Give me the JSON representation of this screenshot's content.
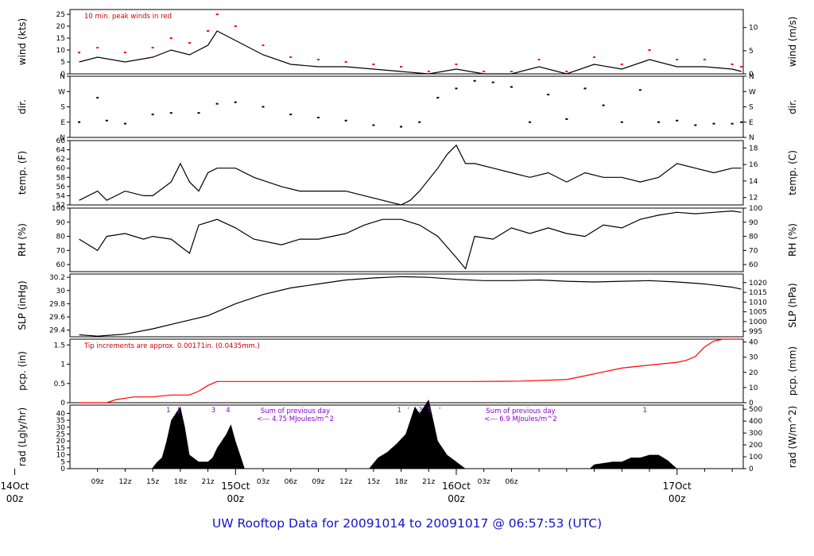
{
  "chart_data": {
    "type": "line",
    "title": "UW Rooftop Data for 20091014  to  20091017 @ 06:57:53  (UTC)",
    "x_ticks": [
      "09z",
      "12z",
      "15z",
      "18z",
      "21z",
      "03z",
      "06z",
      "09z",
      "12z",
      "15z",
      "18z",
      "21z",
      "03z",
      "06z"
    ],
    "day_labels": [
      {
        "date": "14Oct",
        "hour": "00z",
        "t": 0
      },
      {
        "date": "15Oct",
        "hour": "00z",
        "t": 24
      },
      {
        "date": "16Oct",
        "hour": "00z",
        "t": 48
      },
      {
        "date": "17Oct",
        "hour": "00z",
        "t": 72
      }
    ],
    "panels": [
      {
        "id": "wind",
        "ylabel": "wind (kts)",
        "ylabel_right": "wind (m/s)",
        "ylim": [
          0,
          27
        ],
        "yticks": [
          0,
          5,
          10,
          15,
          20,
          25
        ],
        "ylim_right": [
          0,
          13.9
        ],
        "yticks_right": [
          0,
          5,
          10
        ],
        "annotation": "10 min. peak winds in red",
        "series": [
          {
            "style": "line",
            "color": "#000000",
            "t": [
              7,
              9,
              12,
              15,
              17,
              19,
              21,
              22,
              24,
              27,
              30,
              33,
              36,
              39,
              42,
              45,
              48,
              51,
              54,
              57,
              60,
              63,
              66,
              69,
              72,
              75,
              78,
              79
            ],
            "y": [
              5,
              7,
              5,
              7,
              10,
              8,
              12,
              18,
              14,
              8,
              4,
              3,
              3,
              2,
              1,
              0,
              2,
              0,
              0,
              3,
              0,
              4,
              2,
              6,
              3,
              3,
              2,
              1
            ]
          },
          {
            "style": "dots",
            "color": "#ff0000",
            "t": [
              7,
              9,
              12,
              15,
              17,
              19,
              21,
              22,
              24,
              27,
              30,
              33,
              36,
              39,
              42,
              45,
              48,
              51,
              54,
              57,
              60,
              63,
              66,
              69,
              72,
              75,
              78,
              79
            ],
            "y": [
              9,
              11,
              9,
              11,
              15,
              13,
              18,
              25,
              20,
              12,
              7,
              6,
              5,
              4,
              3,
              1,
              4,
              1,
              1,
              6,
              1,
              7,
              4,
              10,
              6,
              6,
              4,
              3
            ]
          }
        ]
      },
      {
        "id": "dir",
        "ylabel": "dir.",
        "ylabel_right": "dir.",
        "ylim": [
          0,
          4
        ],
        "ytick_labels": [
          "N",
          "E",
          "S",
          "W",
          "N"
        ],
        "yticks": [
          0,
          1,
          2,
          3,
          4
        ],
        "series": [
          {
            "style": "dots",
            "color": "#000000",
            "t": [
              7,
              9,
              10,
              12,
              15,
              17,
              20,
              22,
              24,
              27,
              30,
              33,
              36,
              39,
              42,
              44,
              46,
              48,
              50,
              52,
              54,
              56,
              58,
              60,
              62,
              64,
              66,
              68,
              70,
              72,
              74,
              76,
              78,
              79
            ],
            "y": [
              1.0,
              2.6,
              1.1,
              0.9,
              1.5,
              1.6,
              1.6,
              2.2,
              2.3,
              2.0,
              1.5,
              1.3,
              1.1,
              0.8,
              0.7,
              1.0,
              2.6,
              3.2,
              3.7,
              3.6,
              3.3,
              1.0,
              2.8,
              1.2,
              3.2,
              2.1,
              1.0,
              3.1,
              1.0,
              1.1,
              0.8,
              0.9,
              0.9,
              1.0
            ]
          }
        ]
      },
      {
        "id": "temp",
        "ylabel": "temp. (F)",
        "ylabel_right": "temp. (C)",
        "ylim": [
          52,
          66
        ],
        "yticks": [
          52,
          54,
          56,
          58,
          60,
          62,
          64,
          66
        ],
        "ylim_right": [
          11.1,
          18.9
        ],
        "yticks_right": [
          12,
          14,
          16,
          18
        ],
        "series": [
          {
            "style": "line",
            "color": "#000000",
            "t": [
              7,
              9,
              10,
              12,
              14,
              15,
              17,
              18,
              19,
              20,
              21,
              22,
              24,
              26,
              29,
              31,
              33,
              36,
              38,
              40,
              42,
              43,
              44,
              46,
              47,
              48,
              49,
              50,
              52,
              54,
              56,
              58,
              60,
              62,
              64,
              66,
              68,
              70,
              72,
              74,
              76,
              78,
              79
            ],
            "y": [
              53,
              55,
              53,
              55,
              54,
              54,
              57,
              61,
              57,
              55,
              59,
              60,
              60,
              58,
              56,
              55,
              55,
              55,
              54,
              53,
              52,
              53,
              55,
              60,
              63,
              65,
              61,
              61,
              60,
              59,
              58,
              59,
              57,
              59,
              58,
              58,
              57,
              58,
              61,
              60,
              59,
              60,
              60
            ]
          }
        ]
      },
      {
        "id": "rh",
        "ylabel": "RH (%)",
        "ylabel_right": "RH (%)",
        "ylim": [
          55,
          100
        ],
        "yticks": [
          60,
          70,
          80,
          90,
          100
        ],
        "yticks_right": [
          60,
          70,
          80,
          90,
          100
        ],
        "series": [
          {
            "style": "line",
            "color": "#000000",
            "t": [
              7,
              9,
              10,
              12,
              14,
              15,
              17,
              19,
              20,
              22,
              24,
              26,
              29,
              31,
              33,
              36,
              38,
              40,
              42,
              44,
              46,
              48,
              49,
              50,
              52,
              54,
              56,
              58,
              60,
              62,
              64,
              66,
              68,
              70,
              72,
              74,
              76,
              78,
              79
            ],
            "y": [
              78,
              70,
              80,
              82,
              78,
              80,
              78,
              68,
              88,
              92,
              86,
              78,
              74,
              78,
              78,
              82,
              88,
              92,
              92,
              88,
              80,
              65,
              57,
              80,
              78,
              86,
              82,
              86,
              82,
              80,
              88,
              86,
              92,
              95,
              97,
              96,
              97,
              98,
              97
            ]
          }
        ]
      },
      {
        "id": "slp",
        "ylabel": "SLP (inHg)",
        "ylabel_right": "SLP (hPa)",
        "ylim": [
          29.3,
          30.25
        ],
        "yticks": [
          29.4,
          29.6,
          29.8,
          30.0,
          30.2
        ],
        "ylim_right": [
          992.2,
          1024.4
        ],
        "yticks_right": [
          995,
          1000,
          1005,
          1010,
          1015,
          1020
        ],
        "series": [
          {
            "style": "line",
            "color": "#000000",
            "t": [
              7,
              9,
              12,
              15,
              18,
              21,
              24,
              27,
              30,
              33,
              36,
              39,
              42,
              45,
              48,
              51,
              54,
              57,
              60,
              63,
              66,
              69,
              72,
              75,
              78,
              79
            ],
            "y": [
              29.33,
              29.31,
              29.34,
              29.42,
              29.52,
              29.62,
              29.8,
              29.94,
              30.04,
              30.1,
              30.16,
              30.19,
              30.21,
              30.2,
              30.17,
              30.15,
              30.15,
              30.16,
              30.14,
              30.13,
              30.14,
              30.15,
              30.13,
              30.1,
              30.05,
              30.02
            ]
          }
        ]
      },
      {
        "id": "pcp",
        "ylabel": "pcp. (in)",
        "ylabel_right": "pcp. (mm)",
        "ylim": [
          0,
          1.65
        ],
        "yticks": [
          0,
          0.5,
          1.0,
          1.5
        ],
        "ylim_right": [
          0,
          41.9
        ],
        "yticks_right": [
          0,
          10,
          20,
          30,
          40
        ],
        "annotation": "Tip increments are approx. 0.00171in. (0.0435mm.)",
        "series": [
          {
            "style": "line",
            "color": "#ff0000",
            "t": [
              7,
              10,
              11,
              13,
              15,
              17,
              19,
              20,
              21,
              22,
              25,
              30,
              35,
              40,
              45,
              50,
              55,
              60,
              62,
              64,
              66,
              68,
              70,
              72,
              73,
              74,
              75,
              76,
              77,
              78,
              79
            ],
            "y": [
              0,
              0,
              0.08,
              0.15,
              0.15,
              0.2,
              0.2,
              0.3,
              0.45,
              0.55,
              0.55,
              0.55,
              0.55,
              0.55,
              0.55,
              0.55,
              0.56,
              0.6,
              0.7,
              0.8,
              0.9,
              0.95,
              1.0,
              1.05,
              1.1,
              1.2,
              1.45,
              1.6,
              1.65,
              1.65,
              1.65
            ]
          }
        ]
      },
      {
        "id": "rad",
        "ylabel": "rad (Lgly/hr)",
        "ylabel_right": "rad (W/m^2)",
        "ylim": [
          0,
          46
        ],
        "yticks": [
          0,
          5,
          10,
          15,
          20,
          25,
          30,
          35,
          40
        ],
        "ylim_right": [
          0,
          535
        ],
        "yticks_right": [
          0,
          100,
          200,
          300,
          400,
          500
        ],
        "series": [
          {
            "style": "area",
            "color": "#000000",
            "t": [
              14.9,
              15.5,
              16,
              16.5,
              17,
              17.5,
              18,
              18.5,
              19,
              20,
              21,
              21.5,
              22,
              22.5,
              23,
              23.5,
              24,
              24.5,
              25,
              38.5,
              39.5,
              40.5,
              41.5,
              42.5,
              43,
              43.5,
              44,
              44.5,
              45,
              45.5,
              46,
              46.5,
              47,
              48,
              49,
              62.5,
              63,
              64,
              65,
              66,
              67,
              68,
              69,
              70,
              71,
              72
            ],
            "y": [
              0,
              5,
              8,
              20,
              35,
              40,
              45,
              30,
              10,
              5,
              5,
              8,
              15,
              20,
              25,
              32,
              20,
              10,
              0,
              0,
              8,
              12,
              18,
              25,
              35,
              45,
              40,
              45,
              50,
              35,
              20,
              15,
              10,
              5,
              0,
              0,
              3,
              4,
              5,
              5,
              8,
              8,
              10,
              10,
              6,
              0
            ]
          }
        ],
        "markers": [
          {
            "t": 16.7,
            "label": "1"
          },
          {
            "t": 17.8,
            "label": "|"
          },
          {
            "t": 21.6,
            "label": "3"
          },
          {
            "t": 23.2,
            "label": "4"
          },
          {
            "t": 41.8,
            "label": "1"
          },
          {
            "t": 42.8,
            "label": "'"
          },
          {
            "t": 44.1,
            "label": "3"
          },
          {
            "t": 45.1,
            "label": "5"
          },
          {
            "t": 46.2,
            "label": "'"
          },
          {
            "t": 68.5,
            "label": "1"
          }
        ],
        "notes": [
          {
            "t": 30.5,
            "line1": "Sum of previous day",
            "line2": "<--- 4.75 MJoules/m^2"
          },
          {
            "t": 55.0,
            "line1": "Sum of previous day",
            "line2": "<--- 6.9 MJoules/m^2"
          }
        ]
      }
    ]
  }
}
